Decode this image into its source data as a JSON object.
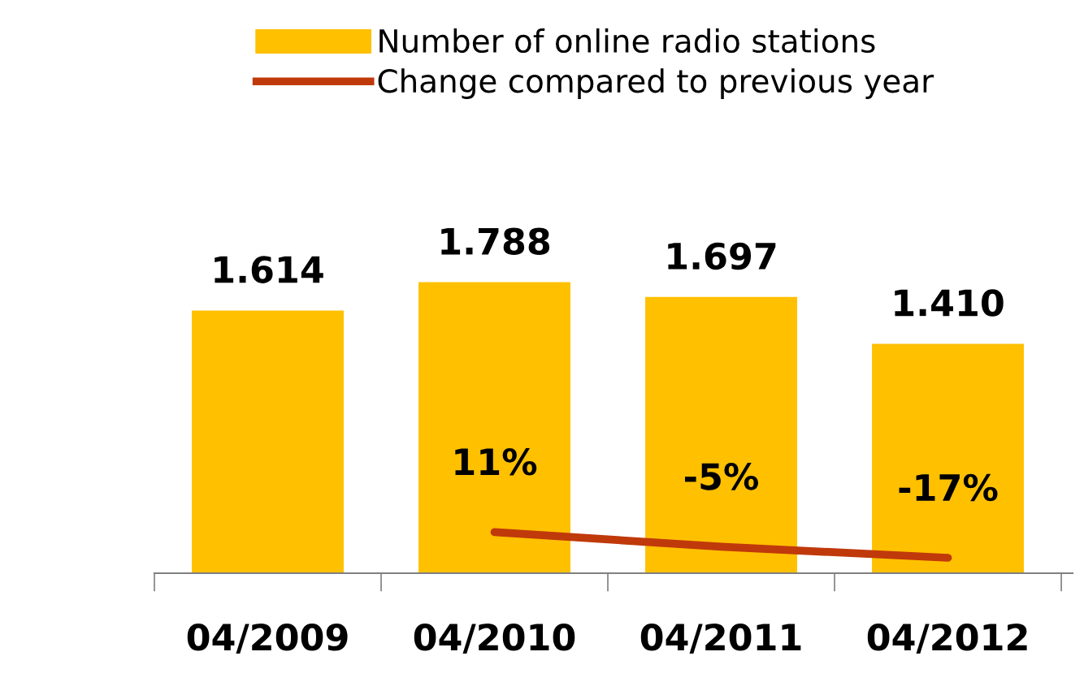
{
  "chart_data": {
    "type": "bar",
    "categories": [
      "04/2009",
      "04/2010",
      "04/2011",
      "04/2012"
    ],
    "series": [
      {
        "name": "Number of online radio stations",
        "color": "#ffc000",
        "values": [
          1614,
          1788,
          1697,
          1410
        ],
        "value_labels": [
          "1.614",
          "1.788",
          "1.697",
          "1.410"
        ]
      },
      {
        "name": "Change compared to previous year",
        "type": "line",
        "axis": "y2",
        "color": "#c0390b",
        "values": [
          null,
          11,
          -5,
          -17
        ],
        "value_labels": [
          null,
          "11%",
          "-5%",
          "-17%"
        ]
      }
    ],
    "legend": "top",
    "grid": false,
    "marker": "none"
  }
}
